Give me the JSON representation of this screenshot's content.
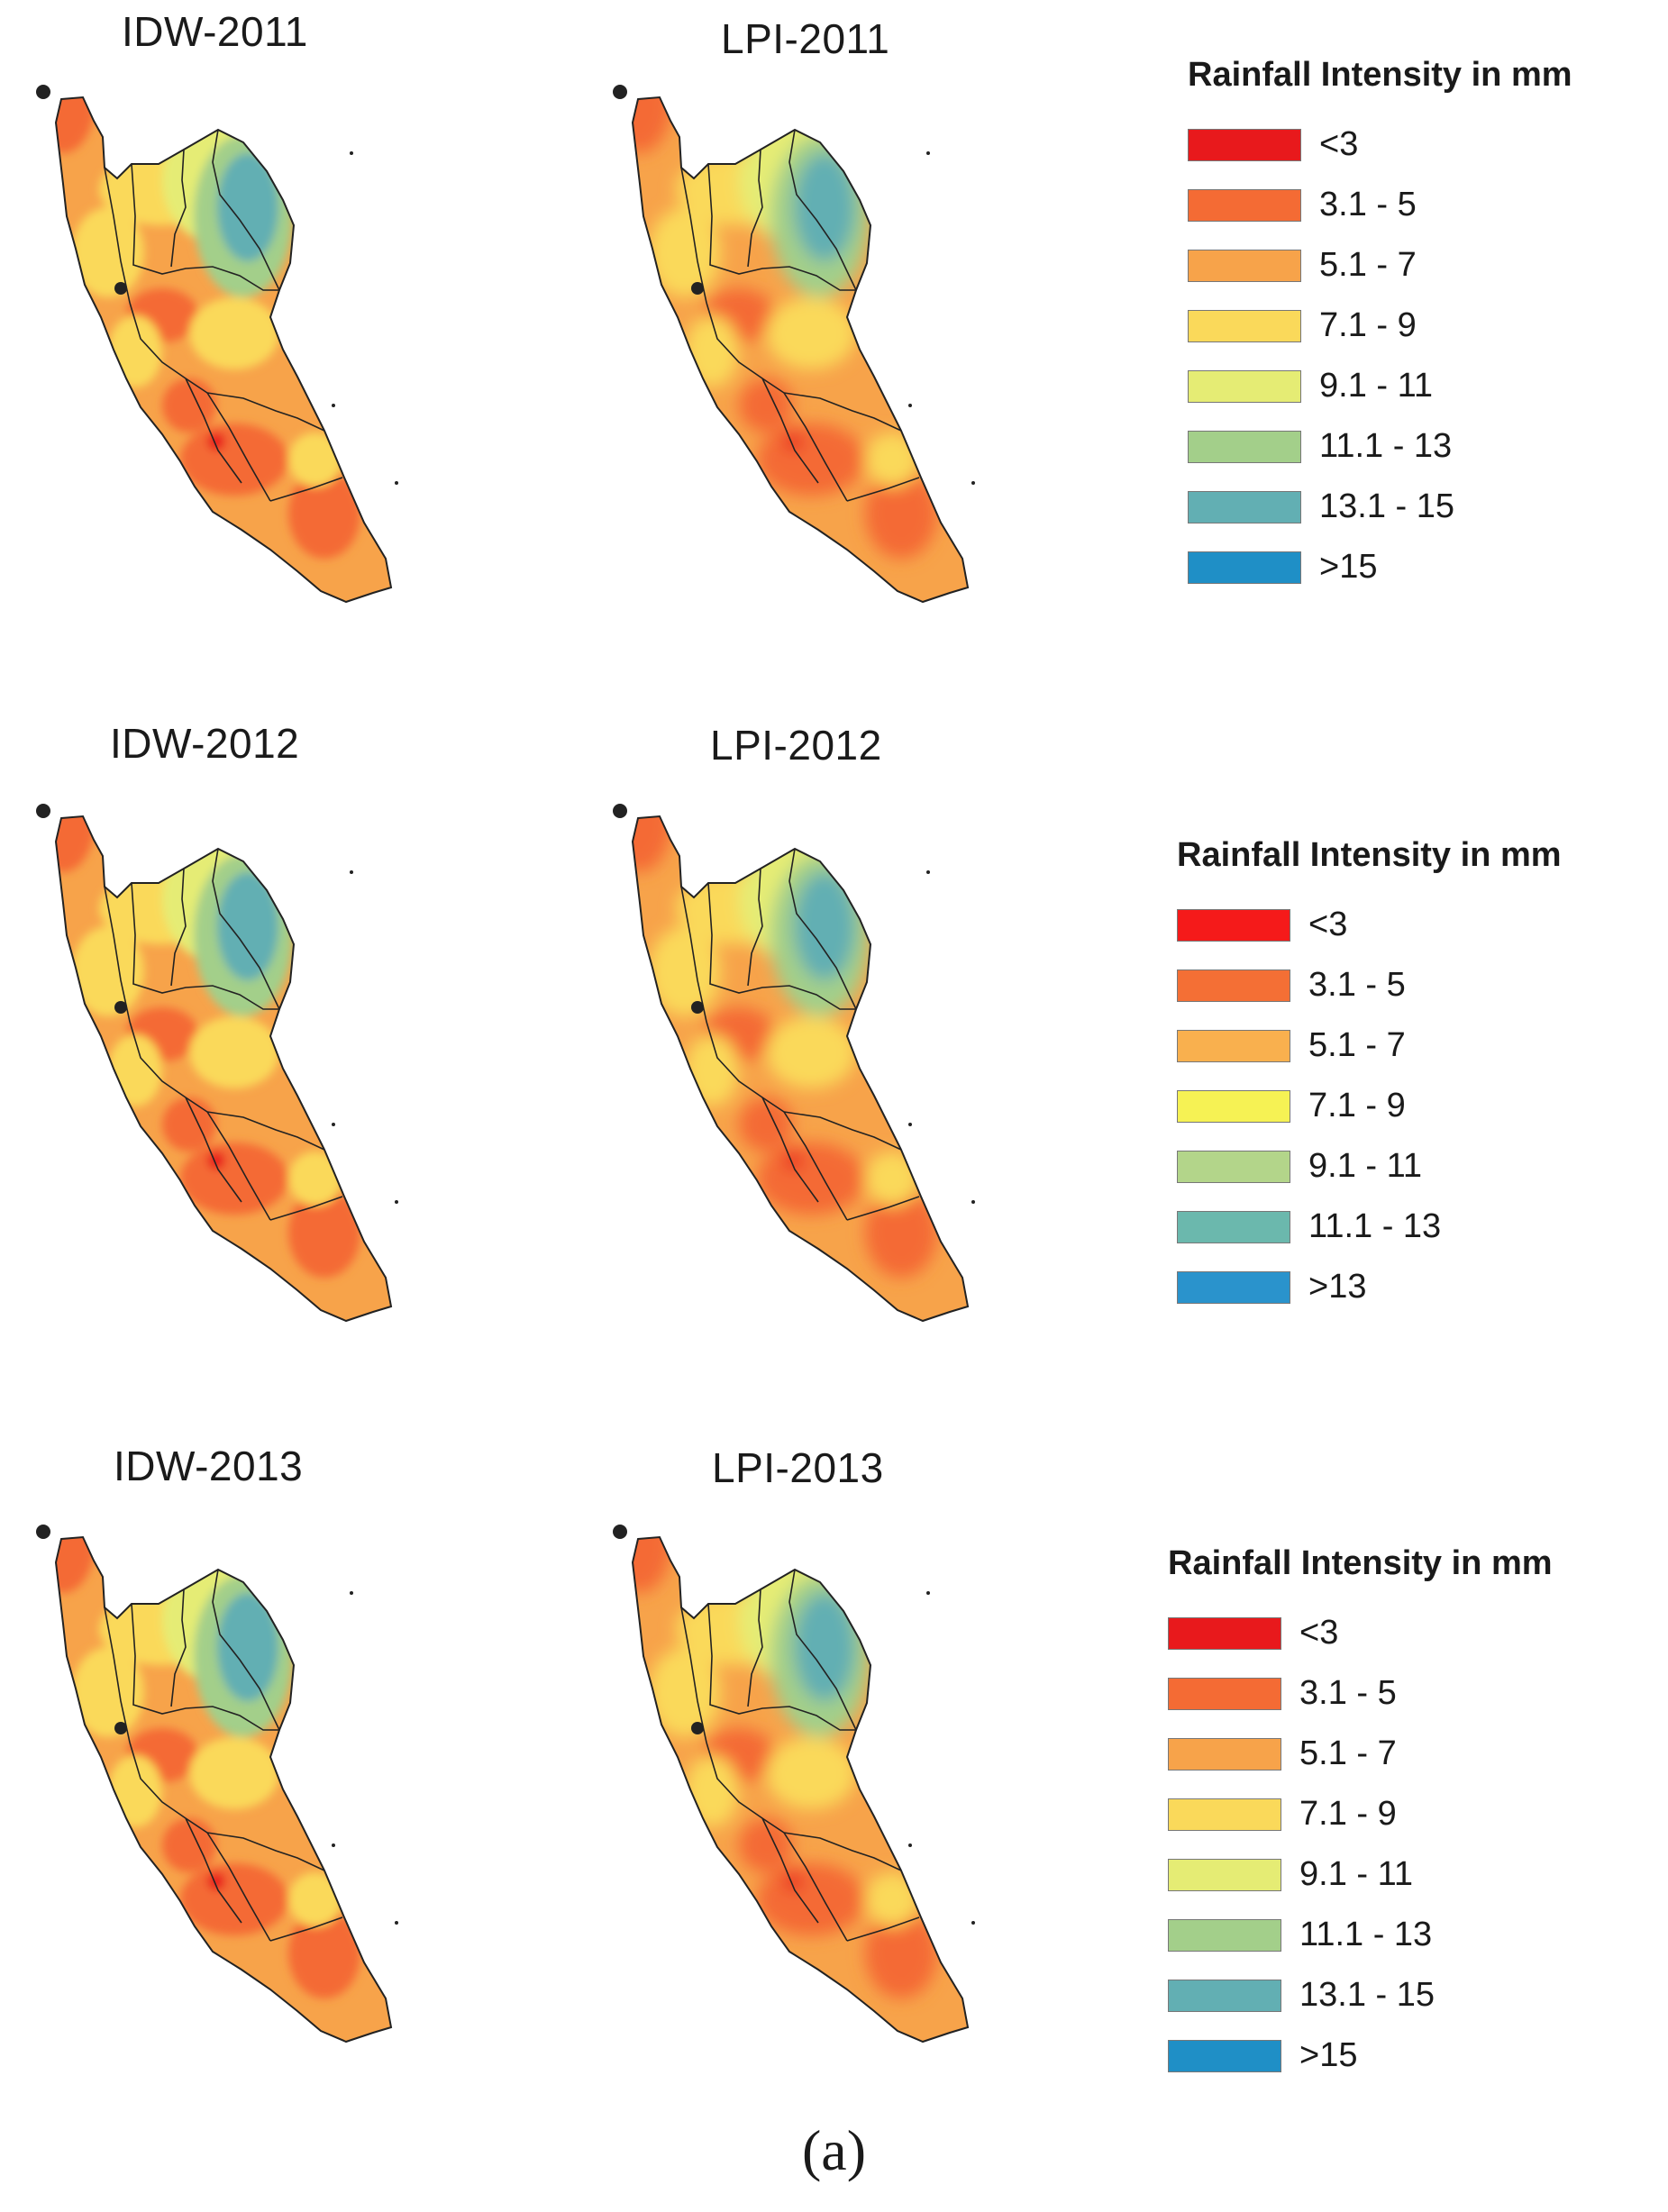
{
  "panels": [
    {
      "id": "idw-2011",
      "title": "IDW-2011"
    },
    {
      "id": "lpi-2011",
      "title": "LPI-2011"
    },
    {
      "id": "idw-2012",
      "title": "IDW-2012"
    },
    {
      "id": "lpi-2012",
      "title": "LPI-2012"
    },
    {
      "id": "idw-2013",
      "title": "IDW-2013"
    },
    {
      "id": "lpi-2013",
      "title": "LPI-2013"
    }
  ],
  "legends": [
    {
      "title": "Rainfall Intensity in mm",
      "items": [
        {
          "label": "<3",
          "color": "#e8191c"
        },
        {
          "label": "3.1 - 5",
          "color": "#f46b34"
        },
        {
          "label": "5.1 - 7",
          "color": "#f7a34a"
        },
        {
          "label": "7.1 - 9",
          "color": "#fad95a"
        },
        {
          "label": "9.1 - 11",
          "color": "#e5ec74"
        },
        {
          "label": "11.1 - 13",
          "color": "#a3cf8a"
        },
        {
          "label": "13.1 - 15",
          "color": "#62afb3"
        },
        {
          "label": ">15",
          "color": "#1f8fc6"
        }
      ]
    },
    {
      "title": "Rainfall Intensity in mm",
      "items": [
        {
          "label": "<3",
          "color": "#f51a1a"
        },
        {
          "label": "3.1 - 5",
          "color": "#f46f35"
        },
        {
          "label": "5.1 - 7",
          "color": "#f9b04e"
        },
        {
          "label": "7.1 - 9",
          "color": "#f6f254"
        },
        {
          "label": "9.1 - 11",
          "color": "#b3d58a"
        },
        {
          "label": "11.1 - 13",
          "color": "#6bb8ad"
        },
        {
          "label": ">13",
          "color": "#2a93cc"
        }
      ]
    },
    {
      "title": "Rainfall Intensity in mm",
      "items": [
        {
          "label": "<3",
          "color": "#e8191c"
        },
        {
          "label": "3.1 - 5",
          "color": "#f46b34"
        },
        {
          "label": "5.1 - 7",
          "color": "#f7a34a"
        },
        {
          "label": "7.1 - 9",
          "color": "#fad95a"
        },
        {
          "label": "9.1 - 11",
          "color": "#e5ec74"
        },
        {
          "label": "11.1 - 13",
          "color": "#a3cf8a"
        },
        {
          "label": "13.1 - 15",
          "color": "#62afb3"
        },
        {
          "label": ">15",
          "color": "#1f8fc6"
        }
      ]
    }
  ],
  "caption": "(a)"
}
